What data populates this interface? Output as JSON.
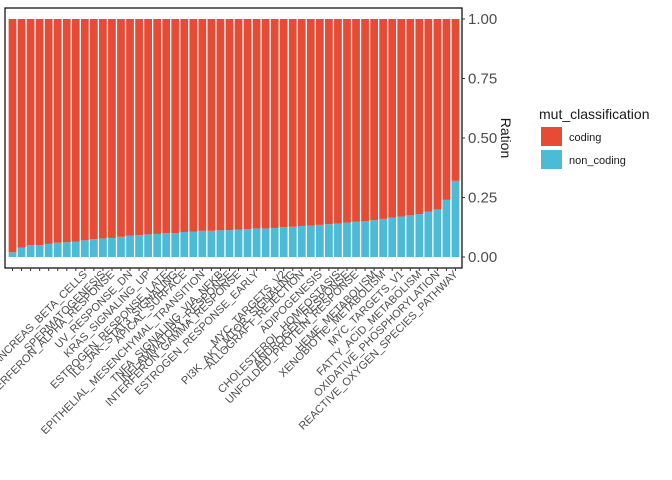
{
  "chart_data": {
    "type": "bar",
    "stacked": true,
    "orientation": "vertical",
    "ylabel": "Ration",
    "ylabel_position": "right",
    "ylim": [
      0,
      1
    ],
    "y_ticks": [
      "0.00",
      "0.25",
      "0.50",
      "0.75",
      "1.00"
    ],
    "grid": false,
    "legend": {
      "title": "mut_classification",
      "position": "right",
      "items": [
        {
          "label": "coding",
          "color": "#E64B35"
        },
        {
          "label": "non_coding",
          "color": "#4DBBD5"
        }
      ]
    },
    "colors": {
      "coding": "#E64B35",
      "non_coding": "#4DBBD5"
    },
    "categories": [
      "",
      "",
      "",
      "",
      "",
      "",
      "",
      "",
      "PANCREAS_BETA_CELLS",
      "",
      "SPERMATOGENESIS",
      "INTERFERON_ALPHA_RESPONSE",
      "",
      "UV_RESPONSE_DN",
      "",
      "KRAS_SIGNALING_UP",
      "",
      "ESTROGEN_RESPONSE_LATE",
      "IL6_JAK_STAT3_SIGNALING",
      "APICAL_SURFACE",
      "",
      "EPITHELIAL_MESENCHYMAL_TRANSITION",
      "",
      "TNFA_SIGNALING_VIA_NFKB",
      "INFLAMMATORY_RESPONSE",
      "INTERFERON_GAMMA_RESPONSE",
      "",
      "ESTROGEN_RESPONSE_EARLY",
      "",
      "",
      "MYC_TARGETS_V2",
      "PI3K_AKT_MTOR_SIGNALING",
      "ALLOGRAFT_REJECTION",
      "",
      "ADIPOGENESIS",
      "",
      "CHOLESTEROL_HOMEOSTASIS",
      "ANDROGEN_RESPONSE",
      "UNFOLDED_PROTEIN_RESPONSE",
      "",
      "HEME_METABOLISM",
      "XENOBIOTIC_METABOLISM",
      "",
      "MYC_TARGETS_V1",
      "",
      "FATTY_ACID_METABOLISM",
      "",
      "OXIDATIVE_PHOSPHORYLATION",
      "",
      "REACTIVE_OXYGEN_SPECIES_PATHWAY"
    ],
    "series": [
      {
        "name": "non_coding",
        "values": [
          0.02,
          0.04,
          0.05,
          0.05,
          0.055,
          0.06,
          0.062,
          0.065,
          0.07,
          0.075,
          0.078,
          0.08,
          0.085,
          0.09,
          0.092,
          0.095,
          0.097,
          0.1,
          0.1,
          0.105,
          0.107,
          0.11,
          0.11,
          0.112,
          0.113,
          0.115,
          0.117,
          0.12,
          0.12,
          0.122,
          0.125,
          0.127,
          0.13,
          0.132,
          0.135,
          0.138,
          0.14,
          0.145,
          0.148,
          0.15,
          0.155,
          0.16,
          0.165,
          0.17,
          0.175,
          0.18,
          0.19,
          0.2,
          0.24,
          0.32
        ]
      },
      {
        "name": "coding",
        "values": [
          0.98,
          0.96,
          0.95,
          0.95,
          0.945,
          0.94,
          0.938,
          0.935,
          0.93,
          0.925,
          0.922,
          0.92,
          0.915,
          0.91,
          0.908,
          0.905,
          0.903,
          0.9,
          0.9,
          0.895,
          0.893,
          0.89,
          0.89,
          0.888,
          0.887,
          0.885,
          0.883,
          0.88,
          0.88,
          0.878,
          0.875,
          0.873,
          0.87,
          0.868,
          0.865,
          0.862,
          0.86,
          0.855,
          0.852,
          0.85,
          0.845,
          0.84,
          0.835,
          0.83,
          0.825,
          0.82,
          0.81,
          0.8,
          0.76,
          0.68
        ]
      }
    ]
  }
}
